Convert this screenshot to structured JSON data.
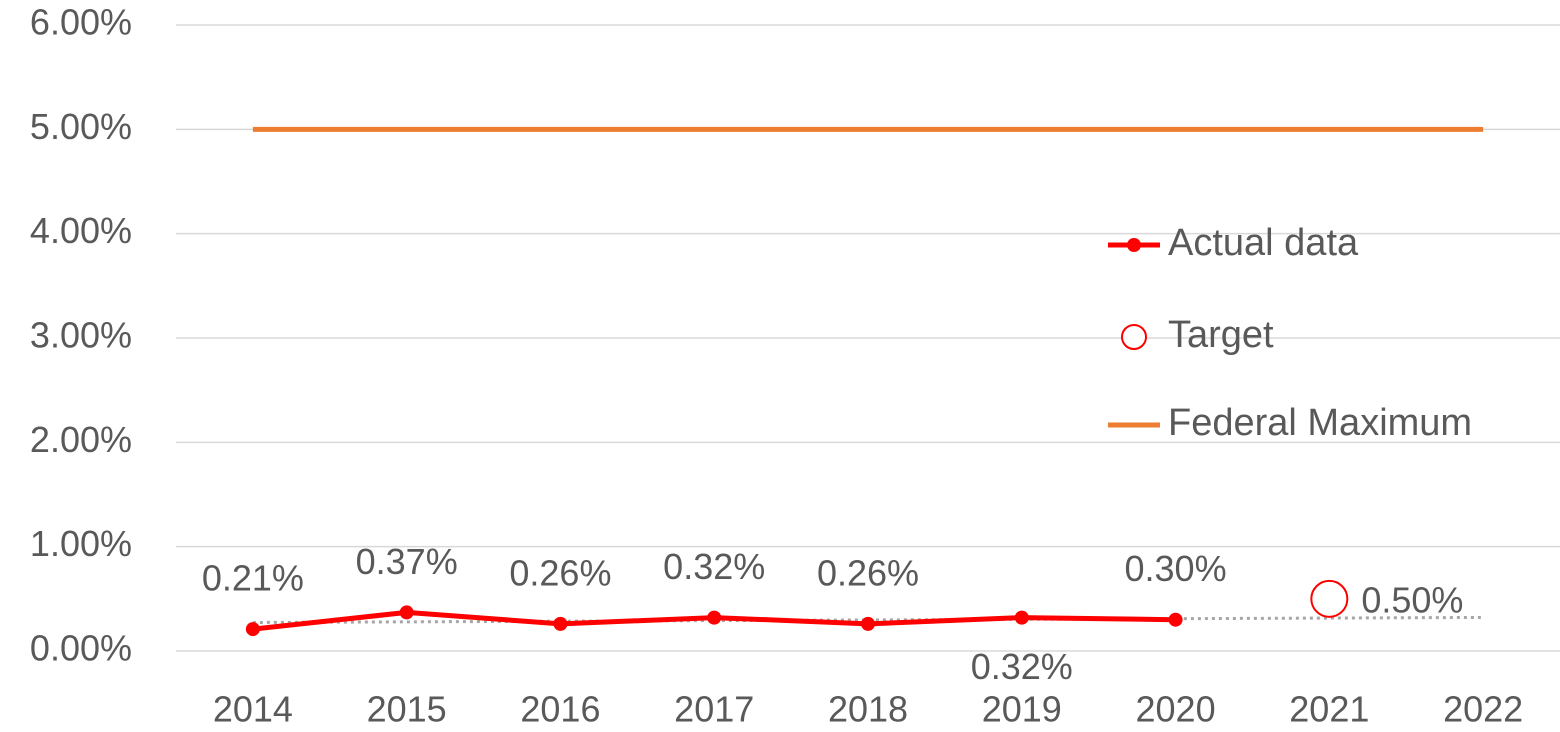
{
  "chart_data": {
    "type": "line",
    "categories": [
      "2014",
      "2015",
      "2016",
      "2017",
      "2018",
      "2019",
      "2020",
      "2021",
      "2022"
    ],
    "series": [
      {
        "name": "Actual data",
        "color": "#ff0000",
        "values": [
          0.21,
          0.37,
          0.26,
          0.32,
          0.26,
          0.32,
          0.3,
          null,
          null
        ],
        "value_labels": [
          "0.21%",
          "0.37%",
          "0.26%",
          "0.32%",
          "0.26%",
          "0.32%",
          "0.30%",
          null,
          null
        ],
        "marker": true,
        "line": true,
        "trendline": "linear"
      },
      {
        "name": "Target",
        "color": "#ff0000",
        "values": [
          null,
          null,
          null,
          null,
          null,
          null,
          null,
          0.5,
          null
        ],
        "value_labels": [
          null,
          null,
          null,
          null,
          null,
          null,
          null,
          "0.50%",
          null
        ],
        "marker": true,
        "line": false
      },
      {
        "name": "Federal Maximum",
        "color": "#ed7d31",
        "values": [
          5,
          5,
          5,
          5,
          5,
          5,
          5,
          5,
          5
        ],
        "marker": false,
        "line": true
      }
    ],
    "ylim": [
      0,
      6
    ],
    "yticks": [
      {
        "value": 0,
        "label": "0.00%"
      },
      {
        "value": 1,
        "label": "1.00%"
      },
      {
        "value": 2,
        "label": "2.00%"
      },
      {
        "value": 3,
        "label": "3.00%"
      },
      {
        "value": 4,
        "label": "4.00%"
      },
      {
        "value": 5,
        "label": "5.00%"
      },
      {
        "value": 6,
        "label": "6.00%"
      }
    ],
    "grid": true,
    "legend": "right"
  }
}
